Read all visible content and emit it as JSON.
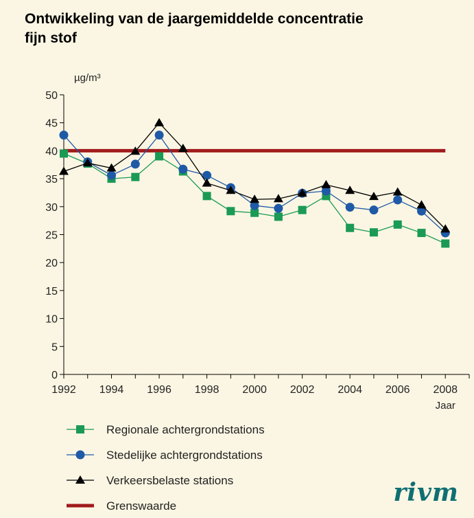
{
  "title_line1": "Ontwikkeling van de jaargemiddelde concentratie",
  "title_line2": "fijn stof",
  "logo_text": "rivm",
  "chart_data": {
    "type": "line",
    "title": "Ontwikkeling van de jaargemiddelde concentratie fijn stof",
    "ylabel": "µg/m³",
    "xlabel": "Jaar",
    "x": [
      1992,
      1993,
      1994,
      1995,
      1996,
      1997,
      1998,
      1999,
      2000,
      2001,
      2002,
      2003,
      2004,
      2005,
      2006,
      2007,
      2008
    ],
    "xticks": [
      1992,
      1994,
      1996,
      1998,
      2000,
      2002,
      2004,
      2006,
      2008
    ],
    "yticks": [
      0,
      5,
      10,
      15,
      20,
      25,
      30,
      35,
      40,
      45,
      50
    ],
    "xlim": [
      1992,
      2009
    ],
    "ylim": [
      0,
      50
    ],
    "grid": false,
    "legend_position": "bottom",
    "series": [
      {
        "name": "Regionale achtergrondstations",
        "marker": "square",
        "color": "#1a9a55",
        "values": [
          39.5,
          37.7,
          35.0,
          35.3,
          39.0,
          36.3,
          31.9,
          29.2,
          28.9,
          28.2,
          29.4,
          31.9,
          26.2,
          25.4,
          26.8,
          25.3,
          23.4
        ]
      },
      {
        "name": "Stedelijke achtergrondstations",
        "marker": "circle",
        "color": "#1f5aa6",
        "values": [
          42.8,
          38.0,
          35.6,
          37.6,
          42.8,
          36.7,
          35.6,
          33.4,
          30.2,
          29.7,
          32.4,
          32.8,
          29.9,
          29.4,
          31.2,
          29.2,
          25.3
        ]
      },
      {
        "name": "Verkeersbelaste stations",
        "marker": "triangle",
        "color": "#000000",
        "values": [
          36.3,
          37.8,
          36.9,
          39.9,
          45.0,
          40.4,
          34.2,
          32.9,
          31.3,
          31.4,
          32.4,
          33.9,
          32.9,
          31.8,
          32.6,
          30.3,
          26.0
        ]
      },
      {
        "name": "Grenswaarde",
        "marker": "none",
        "color": "#a11b1b",
        "values": [
          40,
          40,
          40,
          40,
          40,
          40,
          40,
          40,
          40,
          40,
          40,
          40,
          40,
          40,
          40,
          40,
          40
        ]
      }
    ]
  }
}
